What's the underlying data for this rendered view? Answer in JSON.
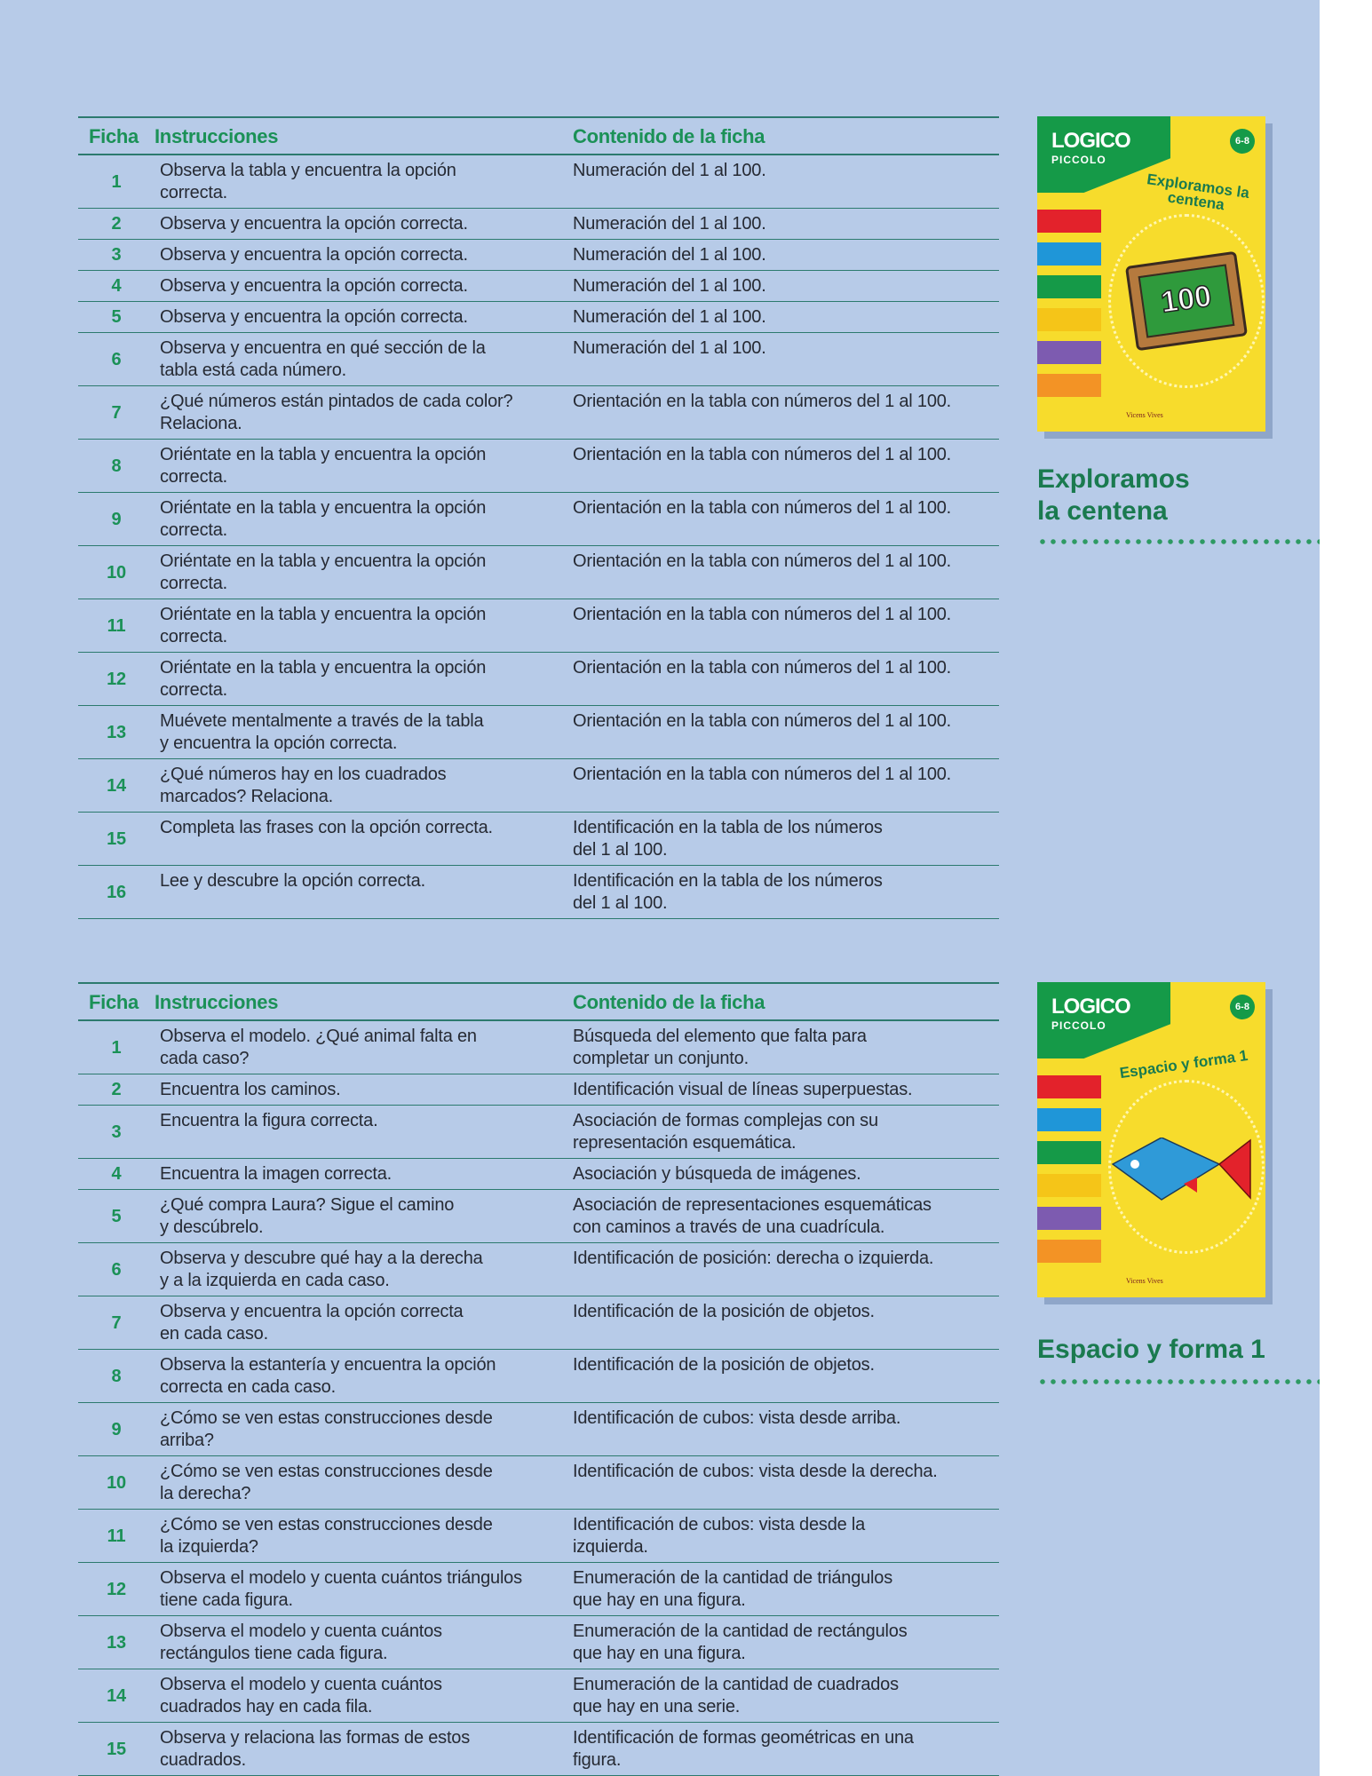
{
  "headers": {
    "ficha": "Ficha",
    "instrucciones": "Instrucciones",
    "contenido": "Contenido de la ficha"
  },
  "books": [
    {
      "title": "Exploramos\nla centena",
      "cover": {
        "logo": "LOGICO",
        "series": "PICCOLO",
        "age": "6-8",
        "title": "Exploramos la centena",
        "slate_number": "100",
        "publisher": "Vicens Vives",
        "cover_color": "#f7dc2c",
        "tab_colors": [
          "#e3222b",
          "#1f96d8",
          "#159a48",
          "#f5c518",
          "#7d5bb0",
          "#f39325"
        ]
      },
      "rows": [
        {
          "num": "1",
          "ins": "Observa la tabla y encuentra la opción\ncorrecta.",
          "con": "Numeración del 1 al 100."
        },
        {
          "num": "2",
          "ins": "Observa y encuentra la opción correcta.",
          "con": "Numeración del 1 al 100."
        },
        {
          "num": "3",
          "ins": "Observa y encuentra la opción correcta.",
          "con": "Numeración del 1 al 100."
        },
        {
          "num": "4",
          "ins": "Observa y encuentra la opción correcta.",
          "con": "Numeración del 1 al 100."
        },
        {
          "num": "5",
          "ins": "Observa y encuentra la opción correcta.",
          "con": "Numeración del 1 al 100."
        },
        {
          "num": "6",
          "ins": "Observa y encuentra en qué sección de la\ntabla está cada número.",
          "con": "Numeración del 1 al 100."
        },
        {
          "num": "7",
          "ins": "¿Qué números están pintados de cada color?\nRelaciona.",
          "con": "Orientación en la tabla con números del 1 al 100."
        },
        {
          "num": "8",
          "ins": "Oriéntate en la tabla y encuentra la opción\ncorrecta.",
          "con": "Orientación en la tabla con números del 1 al 100."
        },
        {
          "num": "9",
          "ins": "Oriéntate en la tabla y encuentra la opción\ncorrecta.",
          "con": "Orientación en la tabla con números del 1 al 100."
        },
        {
          "num": "10",
          "ins": "Oriéntate en la tabla y encuentra la opción\ncorrecta.",
          "con": "Orientación en la tabla con números del 1 al 100."
        },
        {
          "num": "11",
          "ins": "Oriéntate en la tabla y encuentra la opción\ncorrecta.",
          "con": "Orientación en la tabla con números del 1 al 100."
        },
        {
          "num": "12",
          "ins": "Oriéntate en la tabla y encuentra la opción\ncorrecta.",
          "con": "Orientación en la tabla con números del 1 al 100."
        },
        {
          "num": "13",
          "ins": "Muévete mentalmente a través de la tabla\ny encuentra la opción correcta.",
          "con": "Orientación en la tabla con números del 1 al 100."
        },
        {
          "num": "14",
          "ins": "¿Qué números hay en los cuadrados\nmarcados? Relaciona.",
          "con": "Orientación en la tabla con números del 1 al 100."
        },
        {
          "num": "15",
          "ins": "Completa las frases con la opción correcta.",
          "con": "Identificación en la tabla de los números\ndel 1 al 100."
        },
        {
          "num": "16",
          "ins": "Lee y descubre la opción correcta.",
          "con": "Identificación en la tabla de los números\ndel 1 al 100."
        }
      ]
    },
    {
      "title": "Espacio y forma 1",
      "cover": {
        "logo": "LOGICO",
        "series": "PICCOLO",
        "age": "6-8",
        "title": "Espacio y forma 1",
        "publisher": "Vicens Vives",
        "cover_color": "#f7dc2c",
        "tab_colors": [
          "#e3222b",
          "#1f96d8",
          "#159a48",
          "#f5c518",
          "#7d5bb0",
          "#f39325"
        ]
      },
      "rows": [
        {
          "num": "1",
          "ins": "Observa el modelo. ¿Qué animal falta en\ncada caso?",
          "con": "Búsqueda del elemento que falta para\ncompletar un conjunto."
        },
        {
          "num": "2",
          "ins": "Encuentra los caminos.",
          "con": "Identificación visual de líneas superpuestas."
        },
        {
          "num": "3",
          "ins": "Encuentra la figura correcta.",
          "con": "Asociación de formas complejas con su\nrepresentación esquemática."
        },
        {
          "num": "4",
          "ins": "Encuentra la imagen correcta.",
          "con": "Asociación y búsqueda de imágenes."
        },
        {
          "num": "5",
          "ins": "¿Qué compra Laura? Sigue el camino\ny descúbrelo.",
          "con": "Asociación de representaciones esquemáticas\ncon caminos a través de una cuadrícula."
        },
        {
          "num": "6",
          "ins": "Observa y descubre qué hay a la derecha\ny a la izquierda en cada caso.",
          "con": "Identificación de posición: derecha o izquierda."
        },
        {
          "num": "7",
          "ins": "Observa y encuentra la opción correcta\nen cada caso.",
          "con": "Identificación de la posición de objetos."
        },
        {
          "num": "8",
          "ins": "Observa la estantería y encuentra la opción\ncorrecta en cada caso.",
          "con": "Identificación de la posición de objetos."
        },
        {
          "num": "9",
          "ins": "¿Cómo se ven estas construcciones desde\narriba?",
          "con": "Identificación de cubos: vista desde arriba."
        },
        {
          "num": "10",
          "ins": "¿Cómo se ven estas construcciones desde\nla derecha?",
          "con": "Identificación de cubos: vista desde la derecha."
        },
        {
          "num": "11",
          "ins": "¿Cómo se ven estas construcciones desde\nla izquierda?",
          "con": "Identificación de cubos: vista desde la\nizquierda."
        },
        {
          "num": "12",
          "ins": "Observa el modelo y cuenta cuántos triángulos\ntiene cada figura.",
          "con": "Enumeración de la cantidad de triángulos\nque hay en una figura."
        },
        {
          "num": "13",
          "ins": "Observa el modelo y cuenta cuántos\nrectángulos tiene cada figura.",
          "con": "Enumeración de la cantidad de rectángulos\nque hay en una figura."
        },
        {
          "num": "14",
          "ins": "Observa el modelo y cuenta cuántos\ncuadrados hay en cada fila.",
          "con": "Enumeración de la cantidad de cuadrados\nque hay en una serie."
        },
        {
          "num": "15",
          "ins": "Observa y relaciona las formas de estos\ncuadrados.",
          "con": "Identificación de formas geométricas en una\nfigura."
        }
      ]
    }
  ]
}
